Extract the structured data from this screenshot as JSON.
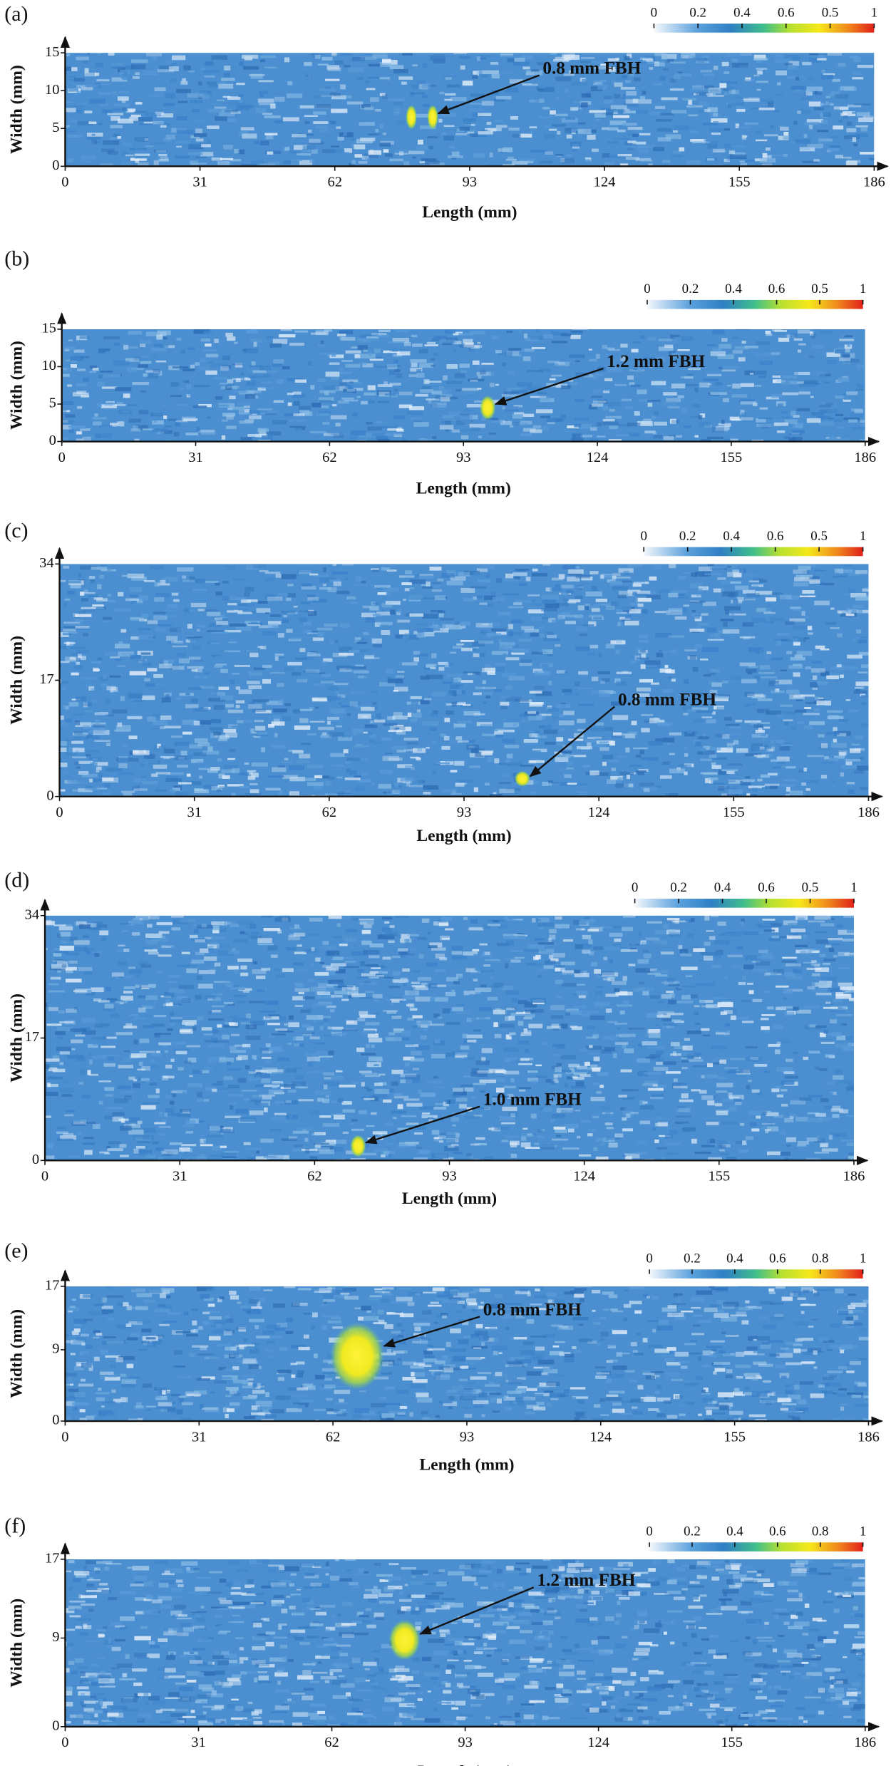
{
  "chart_data": [
    {
      "type": "heatmap",
      "panel_label": "(a)",
      "xlabel": "Length (mm)",
      "ylabel": "Width (mm)",
      "xlim": [
        0,
        186
      ],
      "xticks": [
        0,
        31,
        62,
        93,
        124,
        155,
        186
      ],
      "ylim": [
        0,
        15
      ],
      "yticks": [
        0,
        5,
        10,
        15
      ],
      "colorbar_labels": [
        "0",
        "0.2",
        "0.4",
        "0.6",
        "0.5",
        "1"
      ],
      "annotation": "0.8 mm FBH",
      "defects": {
        "x": [
          79.6,
          84.5
        ],
        "y": [
          6.5,
          6.5
        ]
      }
    },
    {
      "type": "heatmap",
      "panel_label": "(b)",
      "xlabel": "Length (mm)",
      "ylabel": "Width (mm)",
      "xlim": [
        0,
        186
      ],
      "xticks": [
        0,
        31,
        62,
        93,
        124,
        155,
        186
      ],
      "ylim": [
        0,
        15
      ],
      "yticks": [
        0,
        5,
        10,
        15
      ],
      "colorbar_labels": [
        "0",
        "0.2",
        "0.4",
        "0.6",
        "0.5",
        "1"
      ],
      "annotation": "1.2 mm FBH",
      "defects": {
        "x": [
          98.6
        ],
        "y": [
          4.5
        ]
      }
    },
    {
      "type": "heatmap",
      "panel_label": "(c)",
      "xlabel": "Length (mm)",
      "ylabel": "Width (mm)",
      "xlim": [
        0,
        186
      ],
      "xticks": [
        0,
        31,
        62,
        93,
        124,
        155,
        186
      ],
      "ylim": [
        0,
        34
      ],
      "yticks": [
        0,
        17,
        34
      ],
      "colorbar_labels": [
        "0",
        "0.2",
        "0.4",
        "0.6",
        "0.5",
        "1"
      ],
      "annotation": "0.8 mm FBH",
      "defects": {
        "x": [
          106.4
        ],
        "y": [
          2.6
        ]
      }
    },
    {
      "type": "heatmap",
      "panel_label": "(d)",
      "xlabel": "Length (mm)",
      "ylabel": "Width (mm)",
      "xlim": [
        0,
        186
      ],
      "xticks": [
        0,
        31,
        62,
        93,
        124,
        155,
        186
      ],
      "ylim": [
        0,
        34
      ],
      "yticks": [
        0,
        17,
        34
      ],
      "colorbar_labels": [
        "0",
        "0.2",
        "0.4",
        "0.6",
        "0.5",
        "1"
      ],
      "annotation": "1.0 mm FBH",
      "defects": {
        "x": [
          72
        ],
        "y": [
          2
        ]
      }
    },
    {
      "type": "heatmap",
      "panel_label": "(e)",
      "xlabel": "Length (mm)",
      "ylabel": "Width (mm)",
      "xlim": [
        0,
        186
      ],
      "xticks": [
        0,
        31,
        62,
        93,
        124,
        155,
        186
      ],
      "ylim": [
        0,
        17
      ],
      "yticks": [
        0,
        9,
        17
      ],
      "colorbar_labels": [
        "0",
        "0.2",
        "0.4",
        "0.6",
        "0.8",
        "1"
      ],
      "annotation": "0.8 mm FBH",
      "defects": {
        "x": [
          67.6
        ],
        "y": [
          8.2
        ]
      }
    },
    {
      "type": "heatmap",
      "panel_label": "(f)",
      "xlabel": "Length (mm)",
      "ylabel": "Width (mm)",
      "xlim": [
        0,
        186
      ],
      "xticks": [
        0,
        31,
        62,
        93,
        124,
        155,
        186
      ],
      "ylim": [
        0,
        17
      ],
      "yticks": [
        0,
        9,
        17
      ],
      "colorbar_labels": [
        "0",
        "0.2",
        "0.4",
        "0.6",
        "0.8",
        "1"
      ],
      "annotation": "1.2 mm FBH",
      "defects": {
        "x": [
          78.9
        ],
        "y": [
          8.8
        ]
      }
    }
  ]
}
